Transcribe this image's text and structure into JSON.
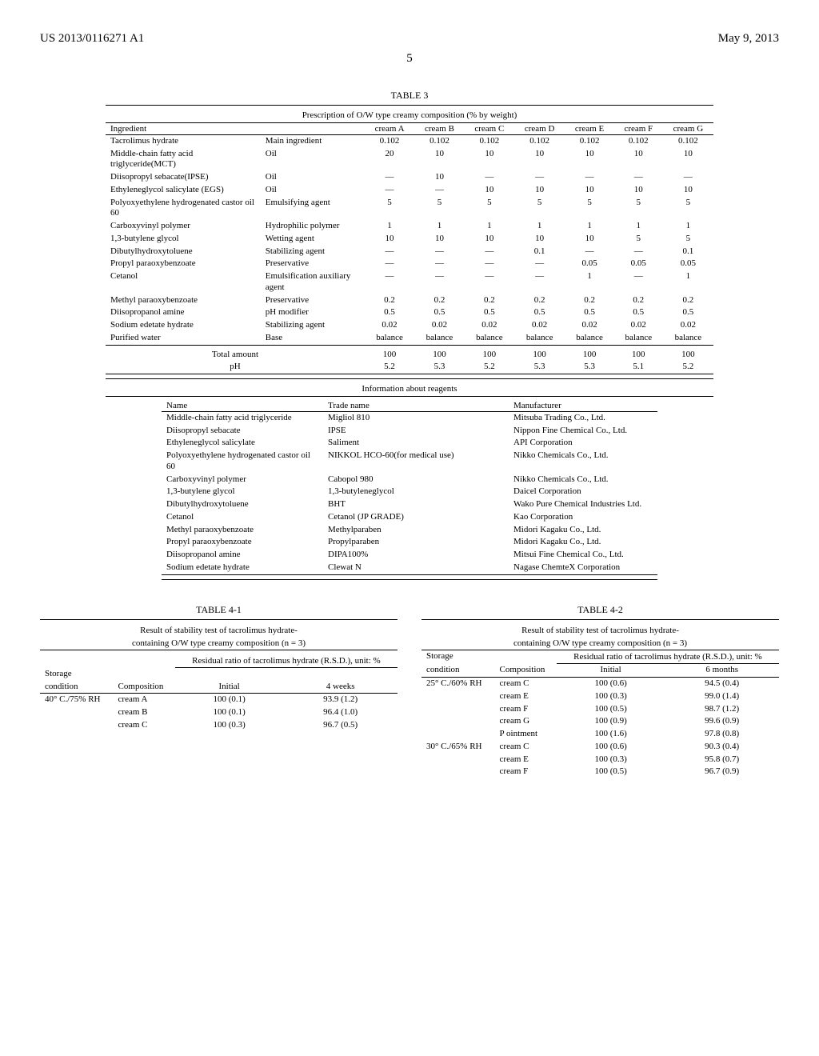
{
  "header": {
    "doc_number": "US 2013/0116271 A1",
    "date": "May 9, 2013",
    "page_number": "5"
  },
  "table3": {
    "caption": "TABLE 3",
    "title": "Prescription of O/W type creamy composition (% by weight)",
    "col_header": "Ingredient",
    "columns": [
      "cream A",
      "cream B",
      "cream C",
      "cream D",
      "cream E",
      "cream F",
      "cream G"
    ],
    "rows": [
      {
        "ingredient": "Tacrolimus hydrate",
        "role": "Main ingredient",
        "v": [
          "0.102",
          "0.102",
          "0.102",
          "0.102",
          "0.102",
          "0.102",
          "0.102"
        ]
      },
      {
        "ingredient": "Middle-chain fatty acid triglyceride(MCT)",
        "role": "Oil",
        "v": [
          "20",
          "10",
          "10",
          "10",
          "10",
          "10",
          "10"
        ]
      },
      {
        "ingredient": "Diisopropyl sebacate(IPSE)",
        "role": "Oil",
        "v": [
          "—",
          "10",
          "—",
          "—",
          "—",
          "—",
          "—"
        ]
      },
      {
        "ingredient": "Ethyleneglycol salicylate (EGS)",
        "role": "Oil",
        "v": [
          "—",
          "—",
          "10",
          "10",
          "10",
          "10",
          "10"
        ]
      },
      {
        "ingredient": "Polyoxyethylene hydrogenated castor oil 60",
        "role": "Emulsifying agent",
        "v": [
          "5",
          "5",
          "5",
          "5",
          "5",
          "5",
          "5"
        ]
      },
      {
        "ingredient": "Carboxyvinyl polymer",
        "role": "Hydrophilic polymer",
        "v": [
          "1",
          "1",
          "1",
          "1",
          "1",
          "1",
          "1"
        ]
      },
      {
        "ingredient": "1,3-butylene glycol",
        "role": "Wetting agent",
        "v": [
          "10",
          "10",
          "10",
          "10",
          "10",
          "5",
          "5"
        ]
      },
      {
        "ingredient": "Dibutylhydroxytoluene",
        "role": "Stabilizing agent",
        "v": [
          "—",
          "—",
          "—",
          "0.1",
          "—",
          "—",
          "0.1"
        ]
      },
      {
        "ingredient": "Propyl paraoxybenzoate",
        "role": "Preservative",
        "v": [
          "—",
          "—",
          "—",
          "—",
          "0.05",
          "0.05",
          "0.05"
        ]
      },
      {
        "ingredient": "Cetanol",
        "role": "Emulsification auxiliary agent",
        "v": [
          "—",
          "—",
          "—",
          "—",
          "1",
          "—",
          "1"
        ]
      },
      {
        "ingredient": "Methyl paraoxybenzoate",
        "role": "Preservative",
        "v": [
          "0.2",
          "0.2",
          "0.2",
          "0.2",
          "0.2",
          "0.2",
          "0.2"
        ]
      },
      {
        "ingredient": "Diisopropanol amine",
        "role": "pH modifier",
        "v": [
          "0.5",
          "0.5",
          "0.5",
          "0.5",
          "0.5",
          "0.5",
          "0.5"
        ]
      },
      {
        "ingredient": "Sodium edetate hydrate",
        "role": "Stabilizing agent",
        "v": [
          "0.02",
          "0.02",
          "0.02",
          "0.02",
          "0.02",
          "0.02",
          "0.02"
        ]
      },
      {
        "ingredient": "Purified water",
        "role": "Base",
        "v": [
          "balance",
          "balance",
          "balance",
          "balance",
          "balance",
          "balance",
          "balance"
        ]
      }
    ],
    "totals": [
      {
        "label": "Total amount",
        "v": [
          "100",
          "100",
          "100",
          "100",
          "100",
          "100",
          "100"
        ]
      },
      {
        "label": "pH",
        "v": [
          "5.2",
          "5.3",
          "5.2",
          "5.3",
          "5.3",
          "5.1",
          "5.2"
        ]
      }
    ],
    "reagents_title": "Information about reagents",
    "reagents_cols": [
      "Name",
      "Trade name",
      "Manufacturer"
    ],
    "reagents": [
      [
        "Middle-chain fatty acid triglyceride",
        "Migliol 810",
        "Mitsuba Trading Co., Ltd."
      ],
      [
        "Diisopropyl sebacate",
        "IPSE",
        "Nippon Fine Chemical Co., Ltd."
      ],
      [
        "Ethyleneglycol salicylate",
        "Saliment",
        "API Corporation"
      ],
      [
        "Polyoxyethylene hydrogenated castor oil 60",
        "NIKKOL HCO-60(for medical use)",
        "Nikko Chemicals Co., Ltd."
      ],
      [
        "Carboxyvinyl polymer",
        "Cabopol 980",
        "Nikko Chemicals Co., Ltd."
      ],
      [
        "1,3-butylene glycol",
        "1,3-butyleneglycol",
        "Daicel Corporation"
      ],
      [
        "Dibutylhydroxytoluene",
        "BHT",
        "Wako Pure Chemical Industries Ltd."
      ],
      [
        "Cetanol",
        "Cetanol (JP GRADE)",
        "Kao Corporation"
      ],
      [
        "Methyl paraoxybenzoate",
        "Methylparaben",
        "Midori Kagaku Co., Ltd."
      ],
      [
        "Propyl paraoxybenzoate",
        "Propylparaben",
        "Midori Kagaku Co., Ltd."
      ],
      [
        "Diisopropanol amine",
        "DIPA100%",
        "Mitsui Fine Chemical Co., Ltd."
      ],
      [
        "Sodium edetate hydrate",
        "Clewat N",
        "Nagase ChemteX Corporation"
      ]
    ]
  },
  "table41": {
    "caption": "TABLE 4-1",
    "title1": "Result of stability test of tacrolimus hydrate-",
    "title2": "containing O/W type creamy composition (n = 3)",
    "header_group": "Residual ratio of tacrolimus hydrate (R.S.D.), unit: %",
    "col1": "Storage",
    "col1b": "condition",
    "col2": "Composition",
    "col3": "Initial",
    "col4": "4 weeks",
    "rows": [
      [
        "40° C./75% RH",
        "cream A",
        "100 (0.1)",
        "93.9 (1.2)"
      ],
      [
        "",
        "cream B",
        "100 (0.1)",
        "96.4 (1.0)"
      ],
      [
        "",
        "cream C",
        "100 (0.3)",
        "96.7 (0.5)"
      ]
    ]
  },
  "table42": {
    "caption": "TABLE 4-2",
    "title1": "Result of stability test of tacrolimus hydrate-",
    "title2": "containing O/W type creamy composition (n = 3)",
    "header_group": "Residual ratio of tacrolimus hydrate (R.S.D.), unit: %",
    "col1": "Storage",
    "col1b": "condition",
    "col2": "Composition",
    "col3": "Initial",
    "col4": "6 months",
    "rows": [
      [
        "25° C./60% RH",
        "cream C",
        "100 (0.6)",
        "94.5 (0.4)"
      ],
      [
        "",
        "cream E",
        "100 (0.3)",
        "99.0 (1.4)"
      ],
      [
        "",
        "cream F",
        "100 (0.5)",
        "98.7 (1.2)"
      ],
      [
        "",
        "cream G",
        "100 (0.9)",
        "99.6 (0.9)"
      ],
      [
        "",
        "P ointment",
        "100 (1.6)",
        "97.8 (0.8)"
      ],
      [
        "30° C./65% RH",
        "cream C",
        "100 (0.6)",
        "90.3 (0.4)"
      ],
      [
        "",
        "cream E",
        "100 (0.3)",
        "95.8 (0.7)"
      ],
      [
        "",
        "cream F",
        "100 (0.5)",
        "96.7 (0.9)"
      ]
    ]
  }
}
